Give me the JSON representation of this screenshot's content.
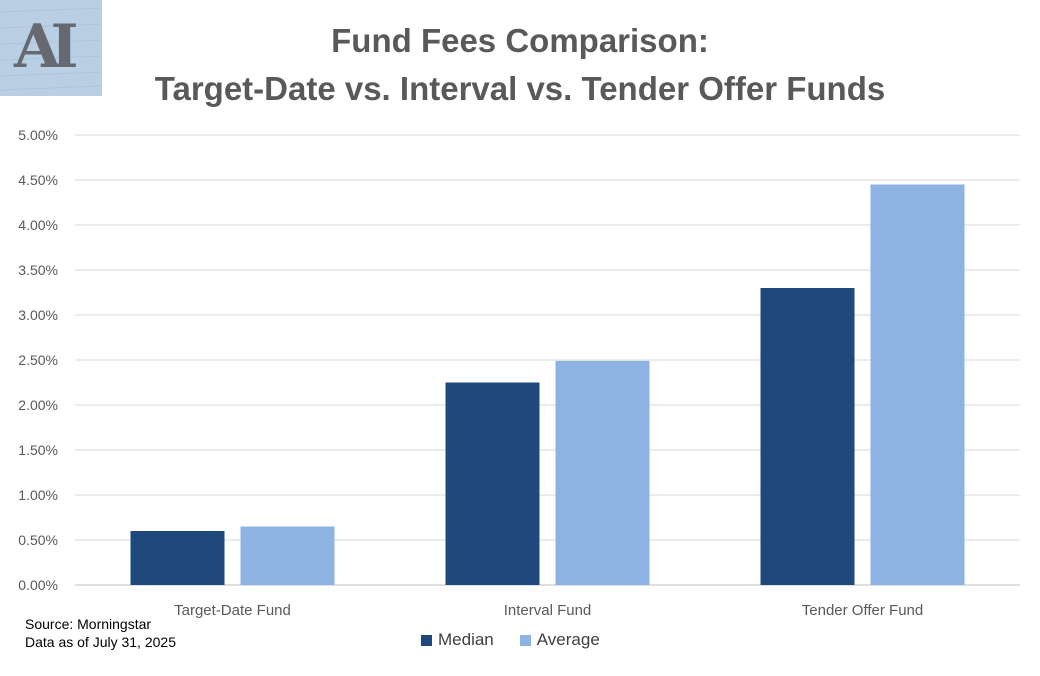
{
  "logo": {
    "text": "AI"
  },
  "title_lines": [
    "Fund Fees Comparison:",
    "Target-Date vs. Interval vs. Tender Offer Funds"
  ],
  "source_lines": [
    "Source: Morningstar",
    "Data as of July 31, 2025"
  ],
  "colors": {
    "median": "#1f497d",
    "average": "#8db3e2",
    "grid": "#d9d9d9",
    "text": "#595959"
  },
  "chart_data": {
    "type": "bar",
    "title": "Fund Fees Comparison: Target-Date vs. Interval vs. Tender Offer Funds",
    "categories": [
      "Target-Date Fund",
      "Interval Fund",
      "Tender Offer Fund"
    ],
    "series": [
      {
        "name": "Median",
        "values": [
          0.6,
          2.25,
          3.3
        ],
        "color": "#1f497d"
      },
      {
        "name": "Average",
        "values": [
          0.65,
          2.49,
          4.45
        ],
        "color": "#8db3e2"
      }
    ],
    "ylim": [
      0,
      5
    ],
    "yticks": [
      "0.00%",
      "0.50%",
      "1.00%",
      "1.50%",
      "2.00%",
      "2.50%",
      "3.00%",
      "3.50%",
      "4.00%",
      "4.50%",
      "5.00%"
    ],
    "xlabel": "",
    "ylabel": "",
    "grid": true,
    "legend": "bottom"
  }
}
